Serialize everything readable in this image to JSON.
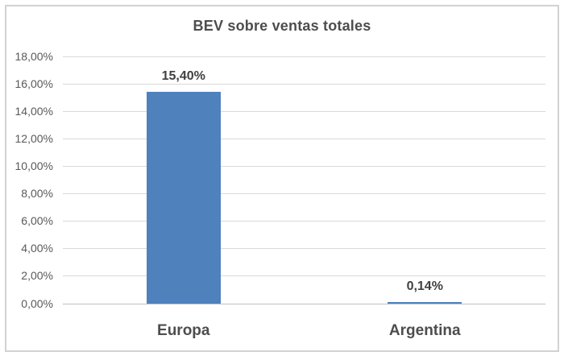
{
  "chart_data": {
    "type": "bar",
    "title": "BEV sobre ventas totales",
    "categories": [
      "Europa",
      "Argentina"
    ],
    "values": [
      15.4,
      0.14
    ],
    "value_labels": [
      "15,40%",
      "0,14%"
    ],
    "xlabel": "",
    "ylabel": "",
    "ylim": [
      0,
      18
    ],
    "ytick_step": 2,
    "ytick_labels": [
      "0,00%",
      "2,00%",
      "4,00%",
      "6,00%",
      "8,00%",
      "10,00%",
      "12,00%",
      "14,00%",
      "16,00%",
      "18,00%"
    ],
    "grid": true,
    "legend": false
  },
  "style": {
    "bar_color": "#4F81BD",
    "title_color": "#4d4d4d",
    "value_label_color": "#404040",
    "axis_label_color": "#595959",
    "category_label_color": "#4d4d4d",
    "gridline_color": "#d9d9d9",
    "axis_line_color": "#bfbfbf",
    "frame_border_color": "#d2d2d2"
  }
}
